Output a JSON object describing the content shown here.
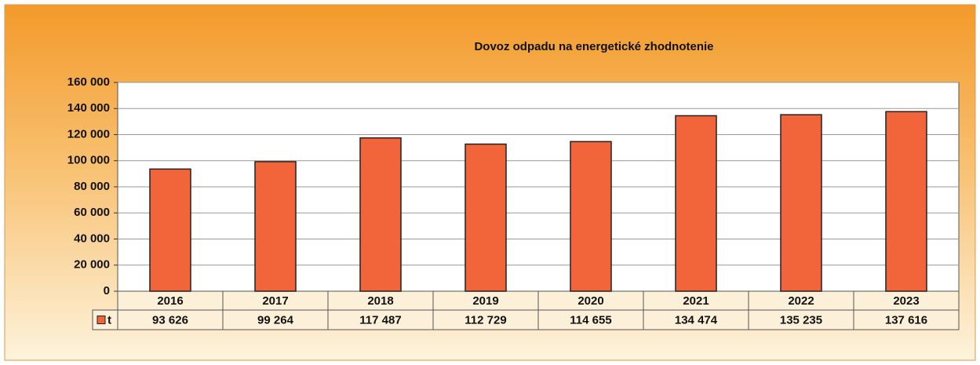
{
  "chart_data": {
    "type": "bar",
    "title": "Dovoz odpadu na energetické zhodnotenie",
    "categories": [
      "2016",
      "2017",
      "2018",
      "2019",
      "2020",
      "2021",
      "2022",
      "2023"
    ],
    "series": [
      {
        "name": "t",
        "color": "#f2643a",
        "values": [
          93626,
          99264,
          117487,
          112729,
          114655,
          134474,
          135235,
          137616
        ],
        "value_labels": [
          "93 626",
          "99 264",
          "117 487",
          "112 729",
          "114 655",
          "134 474",
          "135 235",
          "137 616"
        ]
      }
    ],
    "ylim": [
      0,
      160000
    ],
    "yticks": [
      0,
      {
        "value": 20000,
        "label": "20 000"
      },
      {
        "value": 40000,
        "label": "40 000"
      },
      {
        "value": 60000,
        "label": "60 000"
      },
      {
        "value": 80000,
        "label": "80 000"
      },
      {
        "value": 100000,
        "label": "100 000"
      },
      {
        "value": 120000,
        "label": "120 000"
      },
      {
        "value": 140000,
        "label": "140 000"
      },
      {
        "value": 160000,
        "label": "160 000"
      }
    ],
    "grid": true
  }
}
